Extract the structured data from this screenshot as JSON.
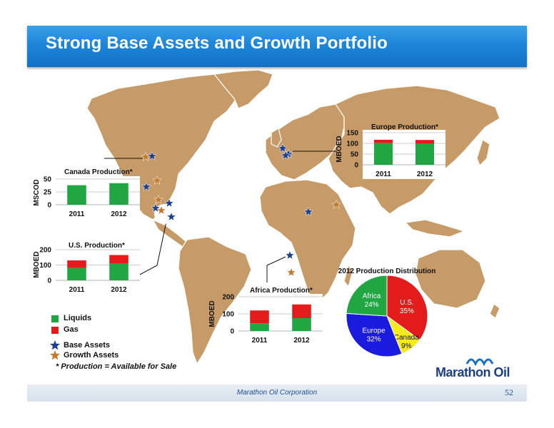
{
  "header": {
    "title": "Strong Base Assets and Growth Portfolio"
  },
  "footer": {
    "company": "Marathon Oil Corporation",
    "page": "52"
  },
  "legend": {
    "liquids": "Liquids",
    "gas": "Gas",
    "base_assets": "Base Assets",
    "growth_assets": "Growth Assets",
    "note": "* Production = Available for Sale"
  },
  "logo": {
    "text": "Marathon Oil"
  },
  "colors": {
    "liquids": "#20a743",
    "gas": "#e31b1b",
    "header": "#1d86d8",
    "land": "#c79b67",
    "base_star": "#1d3f8f",
    "growth_star": "#c47a2c"
  },
  "chart_data": [
    {
      "type": "bar",
      "title": "Canada Production*",
      "ylabel": "MSCOD",
      "categories": [
        "2011",
        "2012"
      ],
      "ylim": [
        0,
        50
      ],
      "yticks": [
        0,
        25,
        50
      ],
      "series": [
        {
          "name": "Liquids",
          "values": [
            38,
            42
          ]
        }
      ]
    },
    {
      "type": "bar",
      "title": "U.S. Production*",
      "ylabel": "MBOED",
      "categories": [
        "2011",
        "2012"
      ],
      "ylim": [
        0,
        200
      ],
      "yticks": [
        0,
        100,
        200
      ],
      "series": [
        {
          "name": "Liquids",
          "values": [
            80,
            110
          ]
        },
        {
          "name": "Gas",
          "values": [
            50,
            55
          ]
        }
      ]
    },
    {
      "type": "bar",
      "title": "Europe Production*",
      "ylabel": "MBOED",
      "categories": [
        "2011",
        "2012"
      ],
      "ylim": [
        0,
        150
      ],
      "yticks": [
        0,
        50,
        100,
        150
      ],
      "series": [
        {
          "name": "Liquids",
          "values": [
            102,
            100
          ]
        },
        {
          "name": "Gas",
          "values": [
            15,
            16
          ]
        }
      ]
    },
    {
      "type": "bar",
      "title": "Africa Production*",
      "ylabel": "MBOED",
      "categories": [
        "2011",
        "2012"
      ],
      "ylim": [
        0,
        200
      ],
      "yticks": [
        0,
        100,
        200
      ],
      "series": [
        {
          "name": "Liquids",
          "values": [
            45,
            75
          ]
        },
        {
          "name": "Gas",
          "values": [
            75,
            80
          ]
        }
      ]
    },
    {
      "type": "pie",
      "title": "2012 Production Distribution",
      "slices": [
        {
          "label": "U.S.",
          "value": 35,
          "color": "#e31b1b"
        },
        {
          "label": "Canada",
          "value": 9,
          "color": "#f5ea1c"
        },
        {
          "label": "Europe",
          "value": 32,
          "color": "#1b1be0"
        },
        {
          "label": "Africa",
          "value": 24,
          "color": "#20a743"
        }
      ]
    }
  ]
}
